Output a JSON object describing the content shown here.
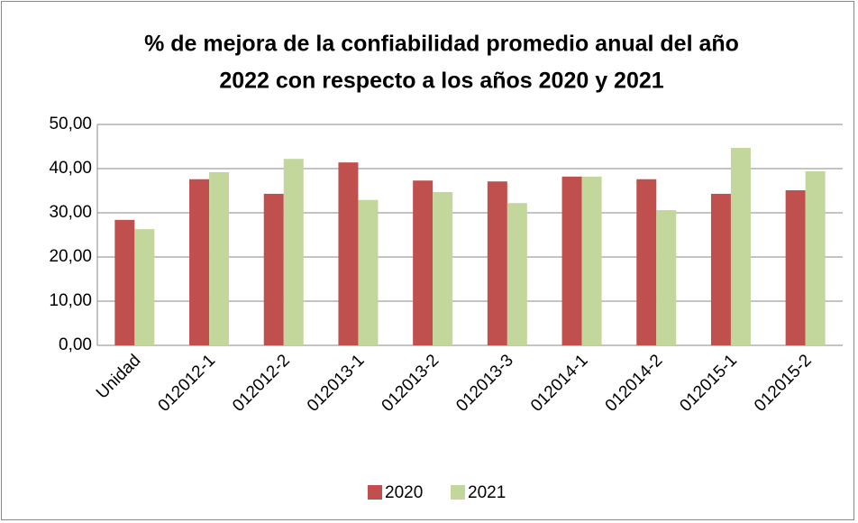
{
  "chart_data": {
    "type": "bar",
    "title": [
      "% de mejora de la confiabilidad promedio anual del año",
      "2022 con respecto a los años  2020 y 2021"
    ],
    "categories": [
      "Unidad",
      "012012-1",
      "012012-2",
      "012013-1",
      "012013-2",
      "012013-3",
      "012014-1",
      "012014-2",
      "012015-1",
      "012015-2"
    ],
    "series": [
      {
        "name": "2020",
        "color": "#c0504d",
        "values": [
          28.4,
          37.6,
          34.3,
          41.4,
          37.3,
          37.1,
          38.2,
          37.6,
          34.3,
          35.1
        ]
      },
      {
        "name": "2021",
        "color": "#c3d69b",
        "values": [
          26.3,
          39.2,
          42.2,
          32.9,
          34.7,
          32.2,
          38.2,
          30.6,
          44.7,
          39.4
        ]
      }
    ],
    "ylim": [
      0,
      50
    ],
    "yticks": [
      {
        "value": 0,
        "label": "0,00"
      },
      {
        "value": 10,
        "label": "10,00"
      },
      {
        "value": 20,
        "label": "20,00"
      },
      {
        "value": 30,
        "label": "30,00"
      },
      {
        "value": 40,
        "label": "40,00"
      },
      {
        "value": 50,
        "label": "50,00"
      }
    ],
    "grid": true,
    "legend": "bottom"
  }
}
